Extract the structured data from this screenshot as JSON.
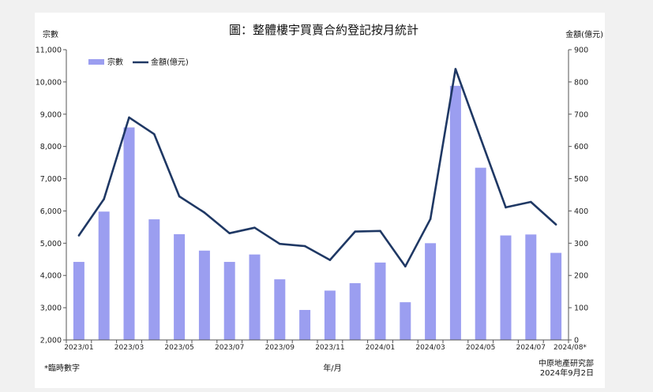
{
  "chart_data": {
    "type": "bar+line",
    "title": "圖：整體樓宇買賣合約登記按月統計",
    "left_axis_title": "宗數",
    "right_axis_title": "金額(億元)",
    "xlabel": "年/月",
    "footnote": "*臨時數字",
    "source_lines": [
      "中原地產研究部",
      "2024年9月2日"
    ],
    "legend": [
      {
        "name": "宗數",
        "kind": "bar"
      },
      {
        "name": "金額(億元)",
        "kind": "line"
      }
    ],
    "legend_position": "top-left",
    "grid": false,
    "categories": [
      "2023/01",
      "2023/02",
      "2023/03",
      "2023/04",
      "2023/05",
      "2023/06",
      "2023/07",
      "2023/08",
      "2023/09",
      "2023/10",
      "2023/11",
      "2023/12",
      "2024/01",
      "2024/02",
      "2024/03",
      "2024/04",
      "2024/05",
      "2024/06",
      "2024/07",
      "2024/08*"
    ],
    "tick_labels": [
      "2023/01",
      "",
      "2023/03",
      "",
      "2023/05",
      "",
      "2023/07",
      "",
      "2023/09",
      "",
      "2023/11",
      "",
      "2024/01",
      "",
      "2024/03",
      "",
      "2024/05",
      "",
      "2024/07",
      "2024/08*"
    ],
    "left_ylim": [
      2000,
      11000
    ],
    "left_ticks": [
      2000,
      3000,
      4000,
      5000,
      6000,
      7000,
      8000,
      9000,
      10000,
      11000
    ],
    "left_tick_labels": [
      "2,000",
      "3,000",
      "4,000",
      "5,000",
      "6,000",
      "7,000",
      "8,000",
      "9,000",
      "10,000",
      "11,000"
    ],
    "right_ylim": [
      0,
      900
    ],
    "right_ticks": [
      0,
      100,
      200,
      300,
      400,
      500,
      600,
      700,
      800,
      900
    ],
    "series": [
      {
        "name": "宗數",
        "axis": "left",
        "type": "bar",
        "values": [
          4420,
          5980,
          8590,
          5740,
          5280,
          4770,
          4420,
          4650,
          3880,
          2930,
          3530,
          3760,
          4400,
          3170,
          5000,
          9880,
          7340,
          5240,
          5270,
          4700
        ]
      },
      {
        "name": "金額(億元)",
        "axis": "right",
        "type": "line",
        "values": [
          324,
          437,
          690,
          638,
          445,
          395,
          331,
          348,
          298,
          291,
          248,
          336,
          338,
          228,
          375,
          840,
          625,
          411,
          428,
          358
        ]
      }
    ],
    "colors": {
      "bar": "#9b9ef0",
      "line": "#1f3864"
    }
  }
}
